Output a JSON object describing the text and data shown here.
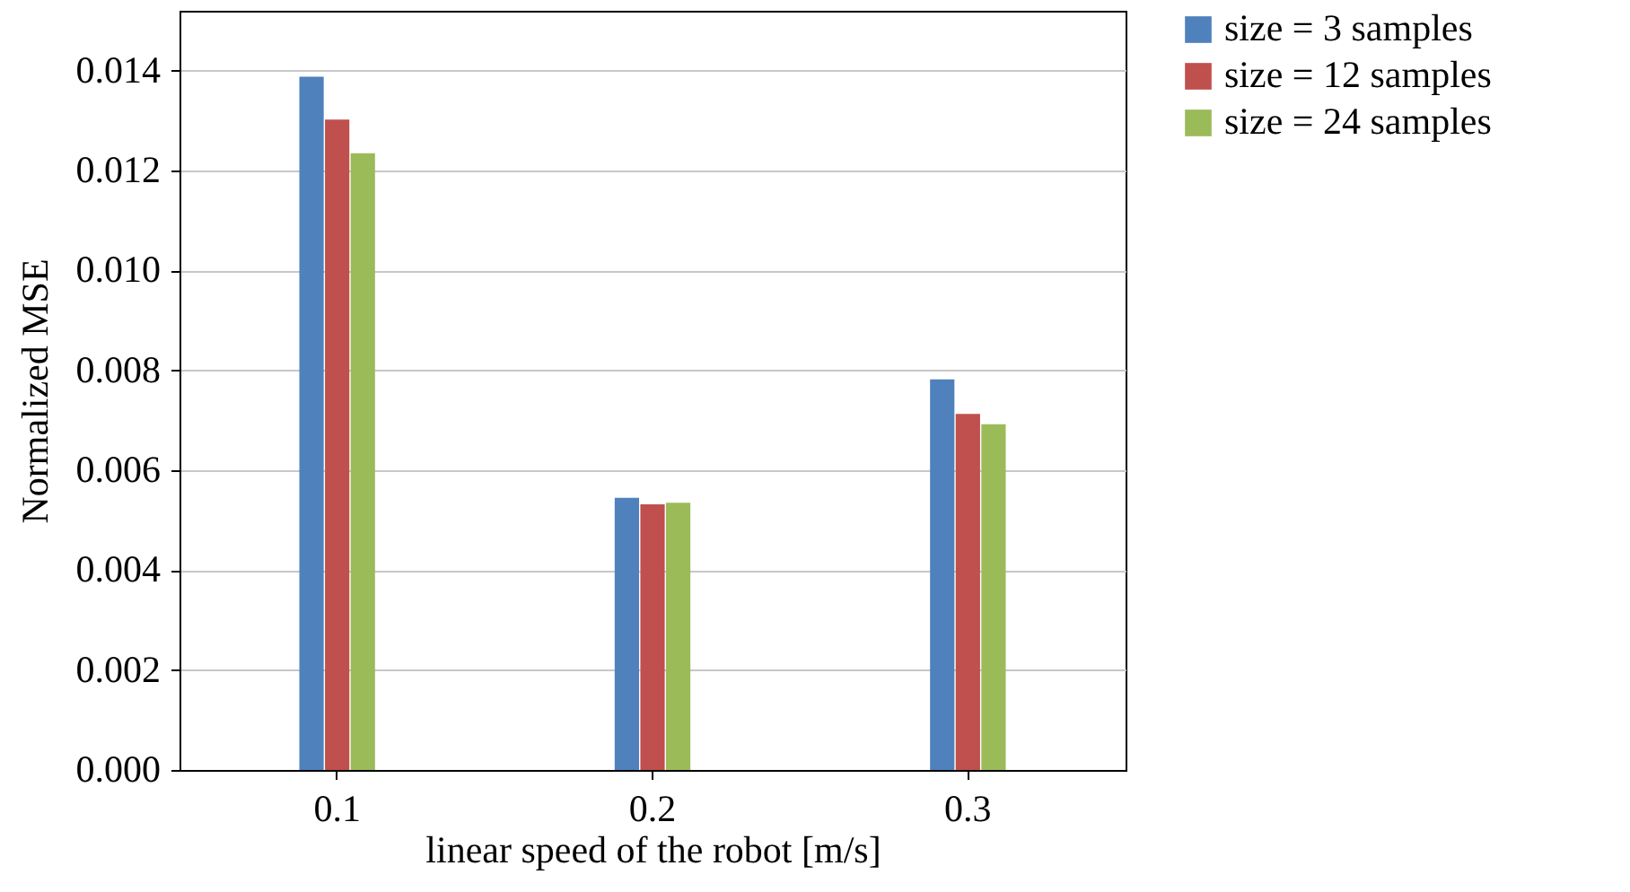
{
  "chart_data": {
    "type": "bar",
    "xlabel": "linear speed of the robot [m/s]",
    "ylabel": "Normalized MSE",
    "categories": [
      "0.1",
      "0.2",
      "0.3"
    ],
    "series": [
      {
        "name": "size = 3 samples",
        "color": "#4f81bd",
        "values": [
          0.01388,
          0.00545,
          0.00782
        ]
      },
      {
        "name": "size = 12 samples",
        "color": "#c0504d",
        "values": [
          0.01302,
          0.00532,
          0.00713
        ]
      },
      {
        "name": "size = 24 samples",
        "color": "#9bbb59",
        "values": [
          0.01235,
          0.00535,
          0.00692
        ]
      }
    ],
    "ylim": [
      0,
      0.0152
    ],
    "yticks": [
      {
        "value": 0,
        "label": "0.000"
      },
      {
        "value": 0.002,
        "label": "0.002"
      },
      {
        "value": 0.004,
        "label": "0.004"
      },
      {
        "value": 0.006,
        "label": "0.006"
      },
      {
        "value": 0.008,
        "label": "0.008"
      },
      {
        "value": 0.01,
        "label": "0.010"
      },
      {
        "value": 0.012,
        "label": "0.012"
      },
      {
        "value": 0.014,
        "label": "0.014"
      }
    ],
    "grid": "y",
    "legend": "right"
  }
}
